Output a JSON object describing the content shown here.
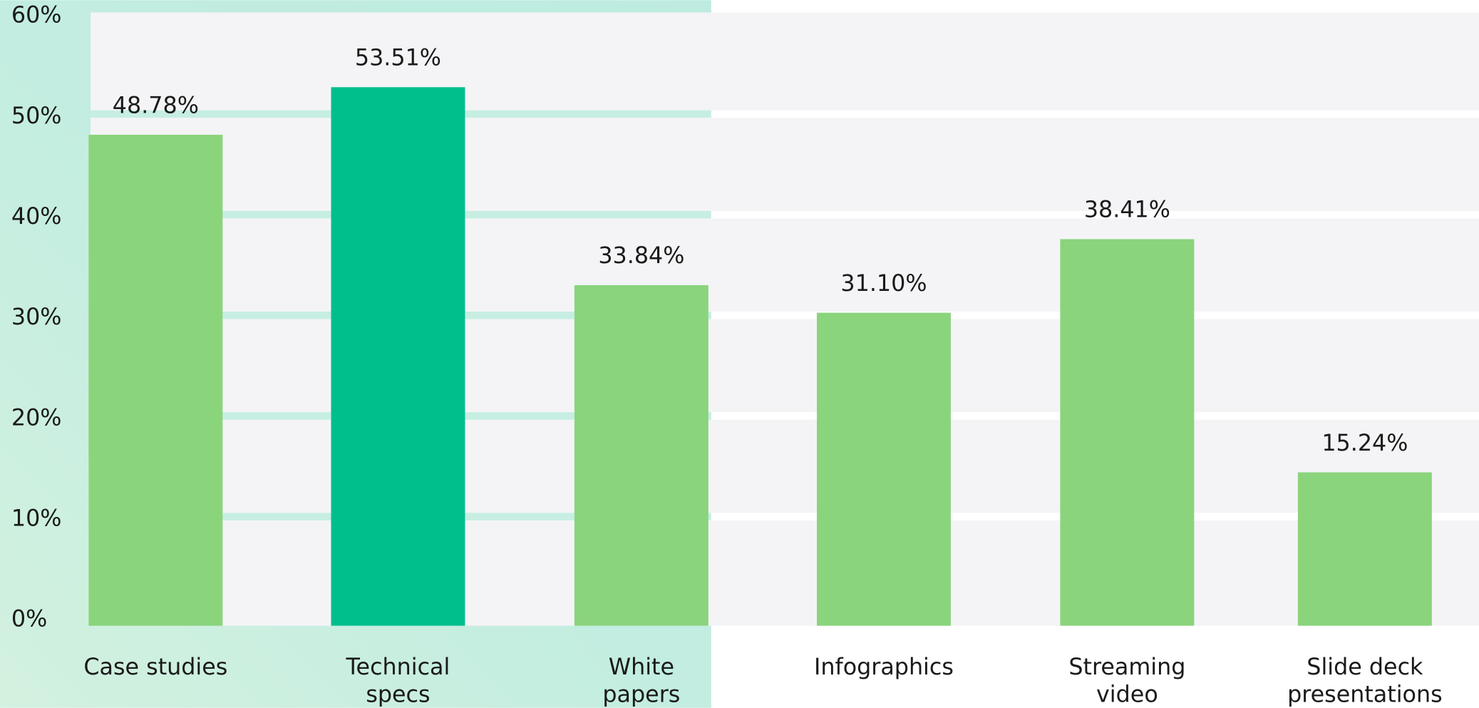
{
  "chart_data": {
    "type": "bar",
    "categories": [
      "Case studies",
      "Technical\nspecs",
      "White\npapers",
      "Infographics",
      "Streaming\nvideo",
      "Slide deck\npresentations"
    ],
    "values": [
      48.78,
      53.51,
      33.84,
      31.1,
      38.41,
      15.24
    ],
    "value_labels": [
      "48.78%",
      "53.51%",
      "33.84%",
      "31.10%",
      "38.41%",
      "15.24%"
    ],
    "colors": [
      "#8ad47c",
      "#00bf8c",
      "#8ad47c",
      "#8ad47c",
      "#8ad47c",
      "#8ad47c"
    ],
    "ylim": [
      0,
      60
    ],
    "yticks": [
      {
        "value": 0,
        "label": "0%"
      },
      {
        "value": 10,
        "label": "10%"
      },
      {
        "value": 20,
        "label": "20%"
      },
      {
        "value": 30,
        "label": "30%"
      },
      {
        "value": 40,
        "label": "40%"
      },
      {
        "value": 50,
        "label": "50%"
      },
      {
        "value": 60,
        "label": "60%"
      }
    ],
    "grid": true
  }
}
